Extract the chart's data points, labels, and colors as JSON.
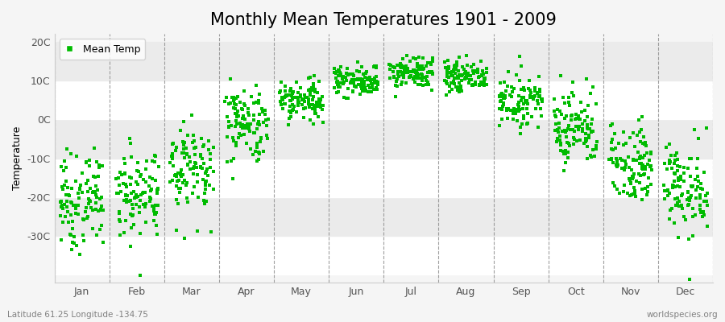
{
  "title": "Monthly Mean Temperatures 1901 - 2009",
  "ylabel": "Temperature",
  "xlabel": "",
  "bottom_left_label": "Latitude 61.25 Longitude -134.75",
  "bottom_right_label": "worldspecies.org",
  "legend_label": "Mean Temp",
  "marker_color": "#00bb00",
  "marker": "s",
  "marker_size": 2.5,
  "ylim": [
    -42,
    22
  ],
  "yticks": [
    -30,
    -20,
    -10,
    0,
    10,
    20
  ],
  "ytick_labels": [
    "-30C",
    "-20C",
    "-10C",
    "0C",
    "10C",
    "20C"
  ],
  "bg_color": "#f5f5f5",
  "band_colors_h": [
    "#ffffff",
    "#ebebeb"
  ],
  "band_boundaries": [
    -40,
    -30,
    -20,
    -10,
    0,
    10,
    20
  ],
  "dashed_color": "#888888",
  "title_fontsize": 15,
  "axis_fontsize": 9,
  "month_names": [
    "Jan",
    "Feb",
    "Mar",
    "Apr",
    "May",
    "Jun",
    "Jul",
    "Aug",
    "Sep",
    "Oct",
    "Nov",
    "Dec"
  ],
  "month_mean_temps": [
    -21,
    -19,
    -12,
    -1,
    5,
    10,
    12,
    11,
    5,
    -2,
    -11,
    -18
  ],
  "month_std_temps": [
    6,
    6,
    6,
    5,
    3,
    2,
    2,
    2,
    3,
    5,
    5,
    6
  ],
  "num_years": 109,
  "seed": 7
}
